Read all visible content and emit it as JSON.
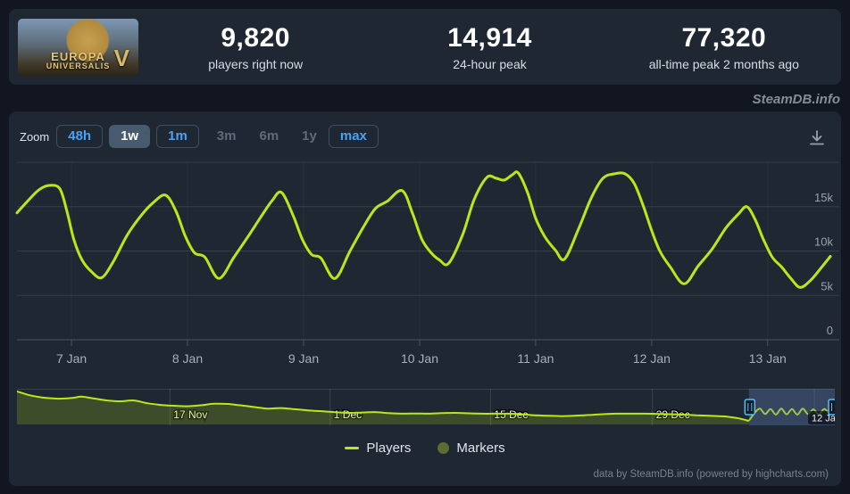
{
  "header": {
    "game_art": {
      "line1": "EUROPA",
      "line2": "UNIVERSALIS",
      "numeral": "V"
    },
    "stats": [
      {
        "value": "9,820",
        "label": "players right now"
      },
      {
        "value": "14,914",
        "label": "24-hour peak"
      },
      {
        "value": "77,320",
        "label": "all-time peak 2 months ago"
      }
    ]
  },
  "watermark": "SteamDB.info",
  "toolbar": {
    "zoom_label": "Zoom",
    "buttons": [
      {
        "label": "48h",
        "state": "link"
      },
      {
        "label": "1w",
        "state": "selected"
      },
      {
        "label": "1m",
        "state": "link"
      },
      {
        "label": "3m",
        "state": "disabled"
      },
      {
        "label": "6m",
        "state": "disabled"
      },
      {
        "label": "1y",
        "state": "disabled"
      },
      {
        "label": "max",
        "state": "link"
      }
    ],
    "download_icon": "download-chart"
  },
  "chart_data": {
    "type": "line",
    "title": "",
    "x_unit": "days since 7 Jan 00:00",
    "x_range": [
      -0.47,
      6.54
    ],
    "y_range": [
      0,
      20000
    ],
    "grid": true,
    "y_ticks": [
      {
        "v": 0,
        "label": "0"
      },
      {
        "v": 5000,
        "label": "5k"
      },
      {
        "v": 10000,
        "label": "10k"
      },
      {
        "v": 15000,
        "label": "15k"
      },
      {
        "v": 20000,
        "label": ""
      }
    ],
    "x_ticks": [
      {
        "t": 0,
        "label": "7 Jan"
      },
      {
        "t": 1,
        "label": "8 Jan"
      },
      {
        "t": 2,
        "label": "9 Jan"
      },
      {
        "t": 3,
        "label": "10 Jan"
      },
      {
        "t": 4,
        "label": "11 Jan"
      },
      {
        "t": 5,
        "label": "12 Jan"
      },
      {
        "t": 6,
        "label": "13 Jan"
      }
    ],
    "series": [
      {
        "name": "Players",
        "color": "#b9e816",
        "points": [
          [
            -0.47,
            14300
          ],
          [
            -0.38,
            15600
          ],
          [
            -0.28,
            16900
          ],
          [
            -0.19,
            17400
          ],
          [
            -0.1,
            17000
          ],
          [
            -0.04,
            14500
          ],
          [
            0.02,
            11300
          ],
          [
            0.09,
            9000
          ],
          [
            0.17,
            7700
          ],
          [
            0.26,
            7000
          ],
          [
            0.36,
            8800
          ],
          [
            0.48,
            11800
          ],
          [
            0.6,
            14000
          ],
          [
            0.7,
            15400
          ],
          [
            0.81,
            16300
          ],
          [
            0.9,
            14500
          ],
          [
            0.98,
            11700
          ],
          [
            1.06,
            9800
          ],
          [
            1.15,
            9300
          ],
          [
            1.27,
            6900
          ],
          [
            1.4,
            9300
          ],
          [
            1.52,
            11600
          ],
          [
            1.64,
            14000
          ],
          [
            1.73,
            15700
          ],
          [
            1.81,
            16600
          ],
          [
            1.91,
            14000
          ],
          [
            1.99,
            11300
          ],
          [
            2.07,
            9600
          ],
          [
            2.15,
            9200
          ],
          [
            2.27,
            6900
          ],
          [
            2.4,
            10000
          ],
          [
            2.52,
            12800
          ],
          [
            2.62,
            14800
          ],
          [
            2.72,
            15600
          ],
          [
            2.85,
            16800
          ],
          [
            2.94,
            14200
          ],
          [
            3.02,
            11300
          ],
          [
            3.1,
            9800
          ],
          [
            3.17,
            9000
          ],
          [
            3.25,
            8600
          ],
          [
            3.37,
            11800
          ],
          [
            3.47,
            15800
          ],
          [
            3.58,
            18300
          ],
          [
            3.66,
            18200
          ],
          [
            3.73,
            18000
          ],
          [
            3.8,
            18600
          ],
          [
            3.85,
            18800
          ],
          [
            3.93,
            16600
          ],
          [
            4.0,
            13700
          ],
          [
            4.08,
            11600
          ],
          [
            4.17,
            10100
          ],
          [
            4.25,
            9100
          ],
          [
            4.37,
            12500
          ],
          [
            4.48,
            16000
          ],
          [
            4.58,
            18200
          ],
          [
            4.68,
            18700
          ],
          [
            4.77,
            18700
          ],
          [
            4.85,
            17600
          ],
          [
            4.93,
            15000
          ],
          [
            5.0,
            12300
          ],
          [
            5.07,
            10000
          ],
          [
            5.16,
            8200
          ],
          [
            5.28,
            6300
          ],
          [
            5.4,
            8300
          ],
          [
            5.52,
            10200
          ],
          [
            5.64,
            12600
          ],
          [
            5.75,
            14200
          ],
          [
            5.82,
            15000
          ],
          [
            5.89,
            13600
          ],
          [
            5.96,
            11400
          ],
          [
            6.04,
            9300
          ],
          [
            6.12,
            8200
          ],
          [
            6.2,
            6900
          ],
          [
            6.28,
            5900
          ],
          [
            6.37,
            6700
          ],
          [
            6.46,
            8100
          ],
          [
            6.54,
            9400
          ]
        ]
      }
    ],
    "navigator": {
      "x_ticks": [
        {
          "f": 0.187,
          "label": "17 Nov"
        },
        {
          "f": 0.383,
          "label": "1 Dec"
        },
        {
          "f": 0.579,
          "label": "15 Dec"
        },
        {
          "f": 0.777,
          "label": "29 Dec"
        },
        {
          "f": 0.975,
          "label": "12 Jan"
        }
      ],
      "selection": [
        0.895,
        1.0
      ],
      "selection_label": "12 Jan",
      "fill_color": "rgba(184,232,22,0.20)",
      "mask_color": "rgba(102,133,194,0.32)",
      "handle_color": "#5cbcf0",
      "profile_normalized": [
        [
          0,
          0.975
        ],
        [
          14,
          0.86
        ],
        [
          28,
          0.79
        ],
        [
          46,
          0.755
        ],
        [
          62,
          0.775
        ],
        [
          72,
          0.815
        ],
        [
          86,
          0.76
        ],
        [
          101,
          0.7
        ],
        [
          116,
          0.675
        ],
        [
          131,
          0.7
        ],
        [
          146,
          0.615
        ],
        [
          161,
          0.565
        ],
        [
          176,
          0.54
        ],
        [
          191,
          0.525
        ],
        [
          206,
          0.555
        ],
        [
          221,
          0.6
        ],
        [
          236,
          0.595
        ],
        [
          251,
          0.55
        ],
        [
          266,
          0.5
        ],
        [
          281,
          0.455
        ],
        [
          296,
          0.47
        ],
        [
          311,
          0.435
        ],
        [
          326,
          0.4
        ],
        [
          341,
          0.375
        ],
        [
          356,
          0.345
        ],
        [
          371,
          0.325
        ],
        [
          386,
          0.335
        ],
        [
          401,
          0.35
        ],
        [
          416,
          0.315
        ],
        [
          431,
          0.3
        ],
        [
          446,
          0.305
        ],
        [
          461,
          0.3
        ],
        [
          476,
          0.315
        ],
        [
          491,
          0.325
        ],
        [
          506,
          0.31
        ],
        [
          521,
          0.3
        ],
        [
          536,
          0.3
        ],
        [
          551,
          0.3
        ],
        [
          566,
          0.28
        ],
        [
          581,
          0.25
        ],
        [
          596,
          0.235
        ],
        [
          611,
          0.225
        ],
        [
          626,
          0.24
        ],
        [
          641,
          0.26
        ],
        [
          656,
          0.285
        ],
        [
          671,
          0.3
        ],
        [
          686,
          0.3
        ],
        [
          701,
          0.3
        ],
        [
          716,
          0.295
        ],
        [
          731,
          0.285
        ],
        [
          746,
          0.27
        ],
        [
          761,
          0.25
        ],
        [
          776,
          0.235
        ],
        [
          791,
          0.22
        ],
        [
          806,
          0.17
        ],
        [
          815,
          0.115
        ],
        [
          820,
          0.1
        ],
        [
          826,
          0.32
        ],
        [
          832,
          0.45
        ],
        [
          838,
          0.29
        ],
        [
          844,
          0.44
        ],
        [
          850,
          0.27
        ],
        [
          856,
          0.45
        ],
        [
          862,
          0.28
        ],
        [
          868,
          0.44
        ],
        [
          874,
          0.27
        ],
        [
          880,
          0.45
        ],
        [
          886,
          0.29
        ],
        [
          892,
          0.43
        ],
        [
          898,
          0.28
        ],
        [
          904,
          0.44
        ],
        [
          909,
          0.34
        ],
        [
          913,
          0.38
        ],
        [
          916,
          0.36
        ]
      ]
    }
  },
  "legend": {
    "items": [
      {
        "label": "Players",
        "swatch": "line",
        "color": "#b9e816"
      },
      {
        "label": "Markers",
        "swatch": "circle",
        "color": "#5d6b35"
      }
    ]
  },
  "footer": "data by SteamDB.info (powered by highcharts.com)"
}
